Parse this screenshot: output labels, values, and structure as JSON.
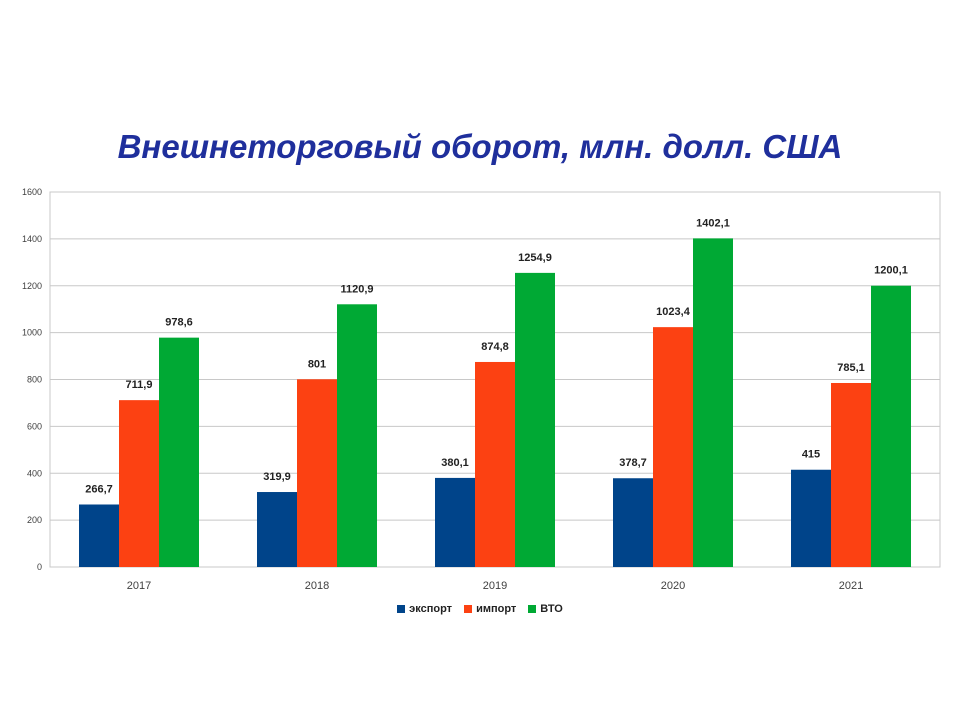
{
  "slide": {
    "title": "Внешнеторговый оборот, млн. долл. США"
  },
  "colors": {
    "title": "#1f2f9c",
    "export": "#00448a",
    "import": "#fc4112",
    "wto": "#00a934",
    "grid": "#c8c8c8"
  },
  "chart_data": {
    "type": "bar",
    "title": "Внешнеторговый оборот, млн. долл. США",
    "xlabel": "",
    "ylabel": "",
    "categories": [
      "2017",
      "2018",
      "2019",
      "2020",
      "2021"
    ],
    "ylim": [
      0,
      1600
    ],
    "yticks": [
      0,
      200,
      400,
      600,
      800,
      1000,
      1200,
      1400,
      1600
    ],
    "grid": true,
    "legend_position": "bottom",
    "series": [
      {
        "name": "экспорт",
        "color": "#00448a",
        "values": [
          266.7,
          319.9,
          380.1,
          378.7,
          415
        ],
        "labels": [
          "266,7",
          "319,9",
          "380,1",
          "378,7",
          "415"
        ]
      },
      {
        "name": "импорт",
        "color": "#fc4112",
        "values": [
          711.9,
          801,
          874.8,
          1023.4,
          785.1
        ],
        "labels": [
          "711,9",
          "801",
          "874,8",
          "1023,4",
          "785,1"
        ]
      },
      {
        "name": "ВТО",
        "color": "#00a934",
        "values": [
          978.6,
          1120.9,
          1254.9,
          1402.1,
          1200.1
        ],
        "labels": [
          "978,6",
          "1120,9",
          "1254,9",
          "1402,1",
          "1200,1"
        ]
      }
    ]
  }
}
